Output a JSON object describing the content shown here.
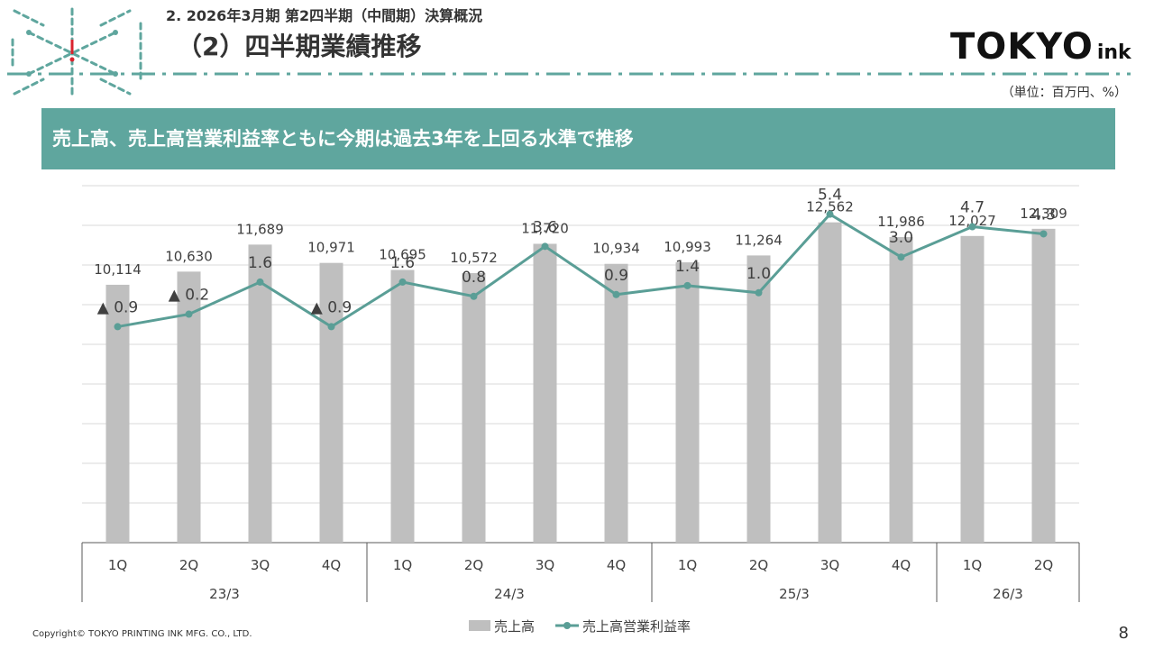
{
  "header": {
    "section": "2. 2026年3月期 第2四半期（中間期）決算概況",
    "title": "（2）四半期業績推移"
  },
  "logo": {
    "main": "TOKYO",
    "sub": "ink"
  },
  "unit_note": "（単位：百万円、%）",
  "banner": "売上高、売上高営業利益率ともに今期は過去3年を上回る水準で推移",
  "colors": {
    "accent": "#5fa69e",
    "bar": "#bfbfbf",
    "line": "#5a9e96",
    "decor_red": "#d9232d"
  },
  "chart_data": {
    "type": "bar",
    "categories": [
      "1Q",
      "2Q",
      "3Q",
      "4Q",
      "1Q",
      "2Q",
      "3Q",
      "4Q",
      "1Q",
      "2Q",
      "3Q",
      "4Q",
      "1Q",
      "2Q"
    ],
    "groups": [
      {
        "label": "23/3",
        "count": 4
      },
      {
        "label": "24/3",
        "count": 4
      },
      {
        "label": "25/3",
        "count": 4
      },
      {
        "label": "26/3",
        "count": 2
      }
    ],
    "series": [
      {
        "name": "売上高",
        "type": "bar",
        "values": [
          10114,
          10630,
          11689,
          10971,
          10695,
          10572,
          11720,
          10934,
          10993,
          11264,
          12562,
          11986,
          12027,
          12309
        ],
        "labels": [
          "10,114",
          "10,630",
          "11,689",
          "10,971",
          "10,695",
          "10,572",
          "11,720",
          "10,934",
          "10,993",
          "11,264",
          "12,562",
          "11,986",
          "12,027",
          "12,309"
        ]
      },
      {
        "name": "売上高営業利益率",
        "type": "line",
        "values": [
          -0.9,
          -0.2,
          1.6,
          -0.9,
          1.6,
          0.8,
          3.6,
          0.9,
          1.4,
          1.0,
          5.4,
          3.0,
          4.7,
          4.3
        ],
        "labels": [
          "▲ 0.9",
          "▲ 0.2",
          "1.6",
          "▲ 0.9",
          "1.6",
          "0.8",
          "3.6",
          "0.9",
          "1.4",
          "1.0",
          "5.4",
          "3.0",
          "4.7",
          "4.3"
        ]
      }
    ],
    "ylim": [
      0,
      14000
    ],
    "y2lim": [
      -13,
      7
    ],
    "grid": true,
    "legend": "bottom-center"
  },
  "footer": {
    "copyright": "Copyright© TOKYO PRINTING INK MFG. CO., LTD.",
    "page": "8"
  }
}
